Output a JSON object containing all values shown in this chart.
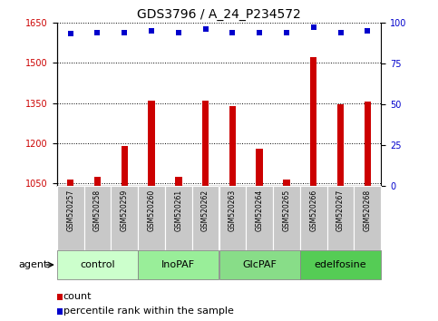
{
  "title": "GDS3796 / A_24_P234572",
  "samples": [
    "GSM520257",
    "GSM520258",
    "GSM520259",
    "GSM520260",
    "GSM520261",
    "GSM520262",
    "GSM520263",
    "GSM520264",
    "GSM520265",
    "GSM520266",
    "GSM520267",
    "GSM520268"
  ],
  "counts": [
    1065,
    1075,
    1190,
    1360,
    1075,
    1360,
    1340,
    1180,
    1065,
    1520,
    1345,
    1355
  ],
  "percentiles": [
    93,
    94,
    94,
    95,
    94,
    96,
    94,
    94,
    94,
    97,
    94,
    95
  ],
  "ylim_left": [
    1040,
    1650
  ],
  "ylim_right": [
    0,
    100
  ],
  "yticks_left": [
    1050,
    1200,
    1350,
    1500,
    1650
  ],
  "yticks_right": [
    0,
    25,
    50,
    75,
    100
  ],
  "groups": [
    {
      "label": "control",
      "start": 0,
      "end": 3,
      "color": "#ccffcc"
    },
    {
      "label": "InoPAF",
      "start": 3,
      "end": 6,
      "color": "#99ee99"
    },
    {
      "label": "GlcPAF",
      "start": 6,
      "end": 9,
      "color": "#88dd88"
    },
    {
      "label": "edelfosine",
      "start": 9,
      "end": 12,
      "color": "#55cc55"
    }
  ],
  "bar_color": "#cc0000",
  "dot_color": "#0000cc",
  "bar_width": 0.25,
  "grid_color": "black",
  "grid_style": "dotted",
  "title_fontsize": 10,
  "tick_fontsize": 7,
  "label_fontsize": 8,
  "group_fontsize": 8,
  "sample_fontsize": 5.5,
  "agent_label": "agent",
  "legend_count": "count",
  "legend_pct": "percentile rank within the sample"
}
